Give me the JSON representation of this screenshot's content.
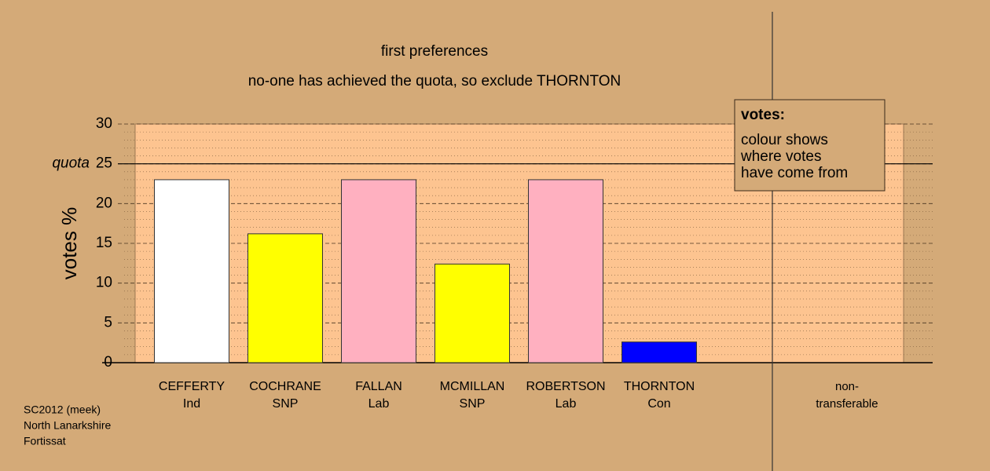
{
  "chart_data": {
    "type": "bar",
    "title": "first preferences",
    "subtitle": "no-one has achieved the quota, so exclude THORNTON",
    "y_label": "votes %",
    "categories": [
      [
        "CEFFERTY",
        "Ind"
      ],
      [
        "COCHRANE",
        "SNP"
      ],
      [
        "FALLAN",
        "Lab"
      ],
      [
        "MCMILLAN",
        "SNP"
      ],
      [
        "ROBERTSON",
        "Lab"
      ],
      [
        "THORNTON",
        "Con"
      ],
      [
        "non-",
        "transferable"
      ]
    ],
    "values": [
      23.0,
      16.2,
      23.0,
      12.4,
      23.0,
      2.6,
      null
    ],
    "colors": [
      "#ffffff",
      "#ffff00",
      "#ffb0c0",
      "#ffff00",
      "#ffb0c0",
      "#0000ff",
      null
    ],
    "ylim": [
      0,
      30
    ],
    "yticks": [
      0,
      5,
      10,
      15,
      20,
      25,
      30
    ],
    "grid": true,
    "quota": {
      "label": "quota",
      "value": 25
    },
    "legend": {
      "title": "votes:",
      "lines": [
        "colour shows",
        "where votes",
        "have come from"
      ]
    }
  },
  "footer": [
    "SC2012 (meek)",
    "North Lanarkshire",
    "Fortissat"
  ]
}
